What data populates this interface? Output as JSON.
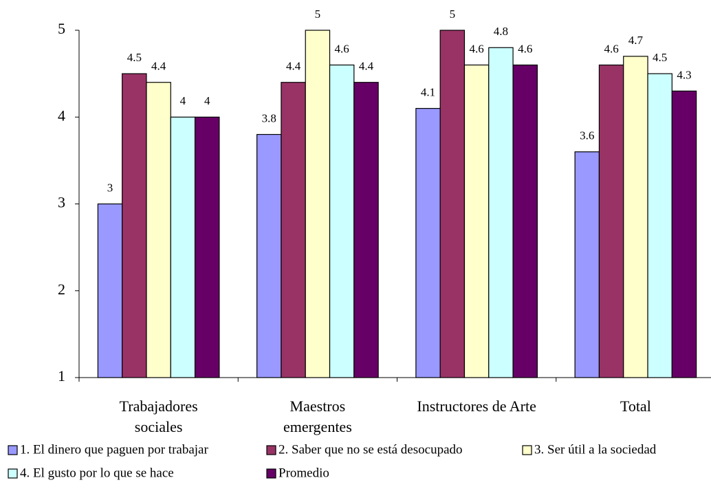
{
  "chart_data": {
    "type": "bar",
    "categories": [
      "Trabajadores\nsociales",
      "Maestros\nemergentes",
      "Instructores de Arte",
      "Total"
    ],
    "series": [
      {
        "name": "1. El dinero que paguen por trabajar",
        "color": "#9999ff",
        "values": [
          3,
          3.8,
          4.1,
          3.6
        ]
      },
      {
        "name": "2. Saber que no se está desocupado",
        "color": "#993366",
        "values": [
          4.5,
          4.4,
          5,
          4.6
        ]
      },
      {
        "name": "3. Ser útil a la sociedad",
        "color": "#ffffcc",
        "values": [
          4.4,
          5,
          4.6,
          4.7
        ]
      },
      {
        "name": "4. El gusto por lo que se hace",
        "color": "#ccffff",
        "values": [
          4,
          4.6,
          4.8,
          4.5
        ]
      },
      {
        "name": "Promedio",
        "color": "#660066",
        "values": [
          4,
          4.4,
          4.6,
          4.3
        ]
      }
    ],
    "ylim": [
      1,
      5
    ],
    "yticks": [
      1,
      2,
      3,
      4,
      5
    ],
    "grid": false,
    "legend": "bottom"
  }
}
